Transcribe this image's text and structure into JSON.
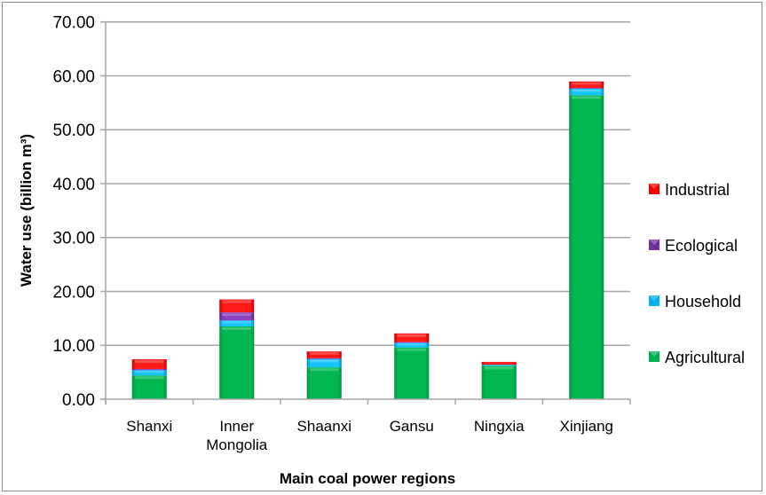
{
  "chart_data": {
    "type": "bar",
    "stacked": true,
    "title": "",
    "xlabel": "Main coal power regions",
    "ylabel": "Water use (billion m³)",
    "ylim": [
      0,
      70
    ],
    "yticks": [
      "0.00",
      "10.00",
      "20.00",
      "30.00",
      "40.00",
      "50.00",
      "60.00",
      "70.00"
    ],
    "grid": true,
    "legend_position": "right",
    "categories": [
      "Shanxi",
      "Inner Mongolia",
      "Shaanxi",
      "Gansu",
      "Ningxia",
      "Xinjiang"
    ],
    "category_lines": [
      [
        "Shanxi"
      ],
      [
        "Inner",
        "Mongolia"
      ],
      [
        "Shaanxi"
      ],
      [
        "Gansu"
      ],
      [
        "Ningxia"
      ],
      [
        "Xinjiang"
      ]
    ],
    "series": [
      {
        "name": "Agricultural",
        "color": "#00b050",
        "values": [
          4.4,
          13.5,
          5.9,
          9.6,
          6.2,
          56.4
        ]
      },
      {
        "name": "Household",
        "color": "#00b0f0",
        "values": [
          1.0,
          1.1,
          1.6,
          0.9,
          0.2,
          1.2
        ]
      },
      {
        "name": "Ecological",
        "color": "#7030a0",
        "values": [
          0.2,
          1.5,
          0.1,
          0.1,
          0.0,
          0.15
        ]
      },
      {
        "name": "Industrial",
        "color": "#ff0000",
        "values": [
          1.8,
          2.4,
          1.25,
          1.6,
          0.5,
          1.2
        ]
      }
    ],
    "legend_order": [
      "Industrial",
      "Ecological",
      "Household",
      "Agricultural"
    ]
  }
}
